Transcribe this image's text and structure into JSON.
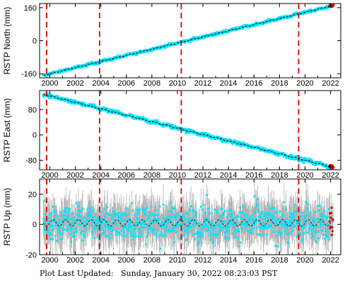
{
  "footer": {
    "label": "Plot Last Updated:",
    "value": "Sunday, January 30, 2022 08:23:03 PST"
  },
  "colors": {
    "points": "#00e5ff",
    "error_bars": "#b0b0b0",
    "model": "#000000",
    "events": "#e00000",
    "recent": "#cc0000"
  },
  "chart_data": [
    {
      "type": "scatter",
      "title": "",
      "ylabel": "RSTP North (mm)",
      "xlabel": "",
      "xlim": [
        1999.2,
        2022.8
      ],
      "ylim": [
        -180,
        180
      ],
      "x_ticks": [
        2000,
        2002,
        2004,
        2006,
        2008,
        2010,
        2012,
        2014,
        2016,
        2018,
        2020,
        2022
      ],
      "y_ticks": [
        -160,
        0,
        160
      ],
      "grid": false,
      "event_lines": [
        1999.75,
        2003.9,
        2010.3,
        2019.5
      ],
      "trend": {
        "x": [
          1999.5,
          2022.2
        ],
        "y": [
          -168,
          170
        ]
      },
      "noise_amplitude": 4
    },
    {
      "type": "scatter",
      "title": "",
      "ylabel": "RSTP East (mm)",
      "xlabel": "",
      "xlim": [
        1999.2,
        2022.8
      ],
      "ylim": [
        -110,
        140
      ],
      "x_ticks": [
        2000,
        2002,
        2004,
        2006,
        2008,
        2010,
        2012,
        2014,
        2016,
        2018,
        2020,
        2022
      ],
      "y_ticks": [
        -80,
        0,
        80
      ],
      "grid": false,
      "event_lines": [
        1999.75,
        2003.9,
        2010.3,
        2019.5
      ],
      "trend": {
        "x": [
          1999.5,
          2022.2
        ],
        "y": [
          128,
          -102
        ]
      },
      "noise_amplitude": 4
    },
    {
      "type": "scatter",
      "title": "",
      "ylabel": "RSTP Up (mm)",
      "xlabel": "",
      "xlim": [
        1999.2,
        2022.8
      ],
      "ylim": [
        -20,
        30
      ],
      "x_ticks": [
        2000,
        2002,
        2004,
        2006,
        2008,
        2010,
        2012,
        2014,
        2016,
        2018,
        2020,
        2022
      ],
      "y_ticks": [
        -20,
        0,
        20
      ],
      "grid": false,
      "event_lines": [
        1999.75,
        2003.9,
        2010.3,
        2019.5
      ],
      "trend": {
        "x": [
          1999.5,
          2022.2
        ],
        "y": [
          1,
          1
        ]
      },
      "noise_amplitude": 8,
      "error_amplitude": 10
    }
  ]
}
